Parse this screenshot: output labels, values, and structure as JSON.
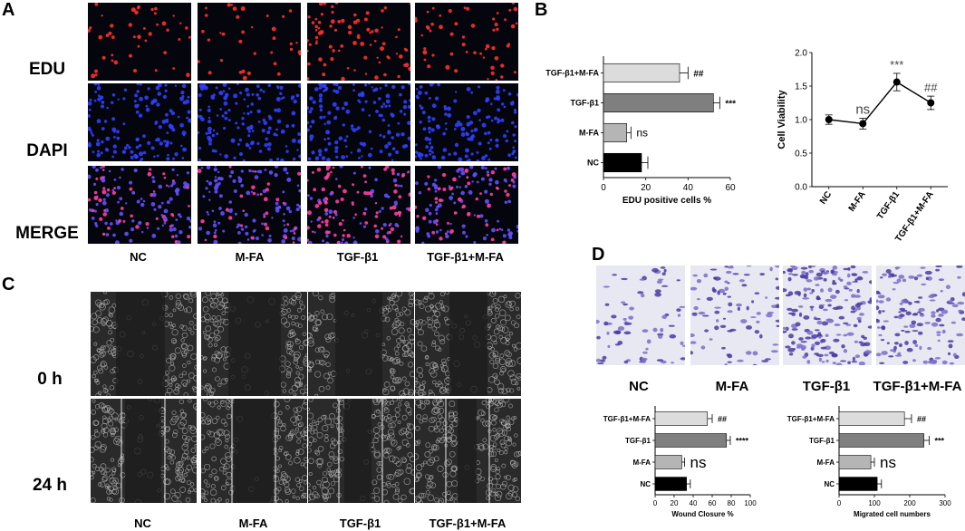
{
  "panels": {
    "a": "A",
    "b": "B",
    "c": "C",
    "d": "D"
  },
  "groups": [
    "NC",
    "M-FA",
    "TGF-β1",
    "TGF-β1+M-FA"
  ],
  "panel_a": {
    "row_labels": [
      "EDU",
      "DAPI",
      "MERGE"
    ],
    "colors": {
      "edu": "#ff3030",
      "dapi": "#3040ff",
      "merge_a": "#ff40a0",
      "merge_b": "#6050ff"
    }
  },
  "panel_c": {
    "row_labels": [
      "0 h",
      "24 h"
    ]
  },
  "chart_data": [
    {
      "type": "bar",
      "orientation": "horizontal",
      "categories": [
        "TGF-β1+M-FA",
        "TGF-β1",
        "M-FA",
        "NC"
      ],
      "values": [
        36,
        52,
        11,
        18
      ],
      "errors": [
        4,
        3,
        2,
        3
      ],
      "annotations": [
        "##",
        "***",
        "ns",
        ""
      ],
      "xlabel": "EDU positive cells %",
      "xlim": [
        0,
        60
      ],
      "xticks": [
        0,
        20,
        40,
        60
      ],
      "colors": [
        "#dcdcdc",
        "#7f7f7f",
        "#b5b5b5",
        "#000000"
      ]
    },
    {
      "type": "line",
      "categories": [
        "NC",
        "M-FA",
        "TGF-β1",
        "TGF-β1+M-FA"
      ],
      "values": [
        1.0,
        0.94,
        1.56,
        1.25
      ],
      "errors": [
        0.07,
        0.08,
        0.13,
        0.1
      ],
      "annotations": [
        "",
        "ns",
        "***",
        "##"
      ],
      "ylabel": "Cell Viability",
      "ylim": [
        0,
        2.0
      ],
      "yticks": [
        "0.0",
        "0.5",
        "1.0",
        "1.5",
        "2.0"
      ]
    },
    {
      "type": "bar",
      "orientation": "horizontal",
      "categories": [
        "TGF-β1+M-FA",
        "TGF-β1",
        "M-FA",
        "NC"
      ],
      "values": [
        55,
        75,
        28,
        33
      ],
      "errors": [
        5,
        4,
        3,
        4
      ],
      "annotations": [
        "##",
        "****",
        "ns",
        ""
      ],
      "xlabel": "Wound Closure %",
      "xlim": [
        0,
        100
      ],
      "xticks": [
        0,
        20,
        40,
        60,
        80,
        100
      ],
      "colors": [
        "#dcdcdc",
        "#7f7f7f",
        "#b5b5b5",
        "#000000"
      ]
    },
    {
      "type": "bar",
      "orientation": "horizontal",
      "categories": [
        "TGF-β1+M-FA",
        "TGF-β1",
        "M-FA",
        "NC"
      ],
      "values": [
        185,
        240,
        90,
        108
      ],
      "errors": [
        20,
        15,
        10,
        12
      ],
      "annotations": [
        "##",
        "***",
        "ns",
        ""
      ],
      "xlabel": "Migrated cell numbers",
      "xlim": [
        0,
        300
      ],
      "xticks": [
        0,
        100,
        200,
        300
      ],
      "colors": [
        "#dcdcdc",
        "#7f7f7f",
        "#b5b5b5",
        "#000000"
      ]
    }
  ]
}
